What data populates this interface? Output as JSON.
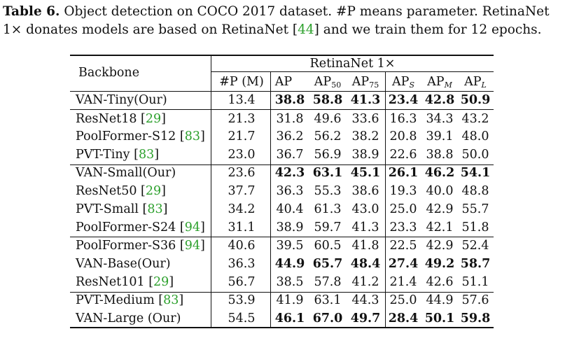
{
  "caption": {
    "label": "Table 6.",
    "line1": "Object detection on COCO 2017 dataset. #P means parameter. RetinaNet",
    "line2a": "1× donates models are based on RetinaNet ",
    "line2_cite_open": "[",
    "line2_cite": "44",
    "line2_cite_close": "]",
    "line2b": " and we train them for 12 epochs."
  },
  "header": {
    "backbone": "Backbone",
    "group": "RetinaNet 1×",
    "params": "#P (M)",
    "ap": "AP",
    "ap50_base": "AP",
    "ap50_sub": "50",
    "ap75_base": "AP",
    "ap75_sub": "75",
    "aps_base": "AP",
    "aps_sub": "S",
    "apm_base": "AP",
    "apm_sub": "M",
    "apl_base": "AP",
    "apl_sub": "L"
  },
  "rows": [
    {
      "name": "VAN-Tiny(Our)",
      "cite": "",
      "params": "13.4",
      "ap": "38.8",
      "ap50": "58.8",
      "ap75": "41.3",
      "aps": "23.4",
      "apm": "42.8",
      "apl": "50.9",
      "bold": true
    },
    {
      "name": "ResNet18 ",
      "cite": "29",
      "params": "21.3",
      "ap": "31.8",
      "ap50": "49.6",
      "ap75": "33.6",
      "aps": "16.3",
      "apm": "34.3",
      "apl": "43.2",
      "bold": false
    },
    {
      "name": "PoolFormer-S12 ",
      "cite": "83",
      "params": "21.7",
      "ap": "36.2",
      "ap50": "56.2",
      "ap75": "38.2",
      "aps": "20.8",
      "apm": "39.1",
      "apl": "48.0",
      "bold": false
    },
    {
      "name": "PVT-Tiny ",
      "cite": "83",
      "params": "23.0",
      "ap": "36.7",
      "ap50": "56.9",
      "ap75": "38.9",
      "aps": "22.6",
      "apm": "38.8",
      "apl": "50.0",
      "bold": false
    },
    {
      "name": "VAN-Small(Our)",
      "cite": "",
      "params": "23.6",
      "ap": "42.3",
      "ap50": "63.1",
      "ap75": "45.1",
      "aps": "26.1",
      "apm": "46.2",
      "apl": "54.1",
      "bold": true
    },
    {
      "name": "ResNet50 ",
      "cite": "29",
      "params": "37.7",
      "ap": "36.3",
      "ap50": "55.3",
      "ap75": "38.6",
      "aps": "19.3",
      "apm": "40.0",
      "apl": "48.8",
      "bold": false
    },
    {
      "name": "PVT-Small ",
      "cite": "83",
      "params": "34.2",
      "ap": "40.4",
      "ap50": "61.3",
      "ap75": "43.0",
      "aps": "25.0",
      "apm": "42.9",
      "apl": "55.7",
      "bold": false
    },
    {
      "name": "PoolFormer-S24 ",
      "cite": "94",
      "params": "31.1",
      "ap": "38.9",
      "ap50": "59.7",
      "ap75": "41.3",
      "aps": "23.3",
      "apm": "42.1",
      "apl": "51.8",
      "bold": false
    },
    {
      "name": "PoolFormer-S36 ",
      "cite": "94",
      "params": "40.6",
      "ap": "39.5",
      "ap50": "60.5",
      "ap75": "41.8",
      "aps": "22.5",
      "apm": "42.9",
      "apl": "52.4",
      "bold": false
    },
    {
      "name": "VAN-Base(Our)",
      "cite": "",
      "params": "36.3",
      "ap": "44.9",
      "ap50": "65.7",
      "ap75": "48.4",
      "aps": "27.4",
      "apm": "49.2",
      "apl": "58.7",
      "bold": true
    },
    {
      "name": "ResNet101 ",
      "cite": "29",
      "params": "56.7",
      "ap": "38.5",
      "ap50": "57.8",
      "ap75": "41.2",
      "aps": "21.4",
      "apm": "42.6",
      "apl": "51.1",
      "bold": false
    },
    {
      "name": "PVT-Medium ",
      "cite": "83",
      "params": "53.9",
      "ap": "41.9",
      "ap50": "63.1",
      "ap75": "44.3",
      "aps": "25.0",
      "apm": "44.9",
      "apl": "57.6",
      "bold": false
    },
    {
      "name": "VAN-Large (Our)",
      "cite": "",
      "params": "54.5",
      "ap": "46.1",
      "ap50": "67.0",
      "ap75": "49.7",
      "aps": "28.4",
      "apm": "50.1",
      "apl": "59.8",
      "bold": true
    }
  ]
}
